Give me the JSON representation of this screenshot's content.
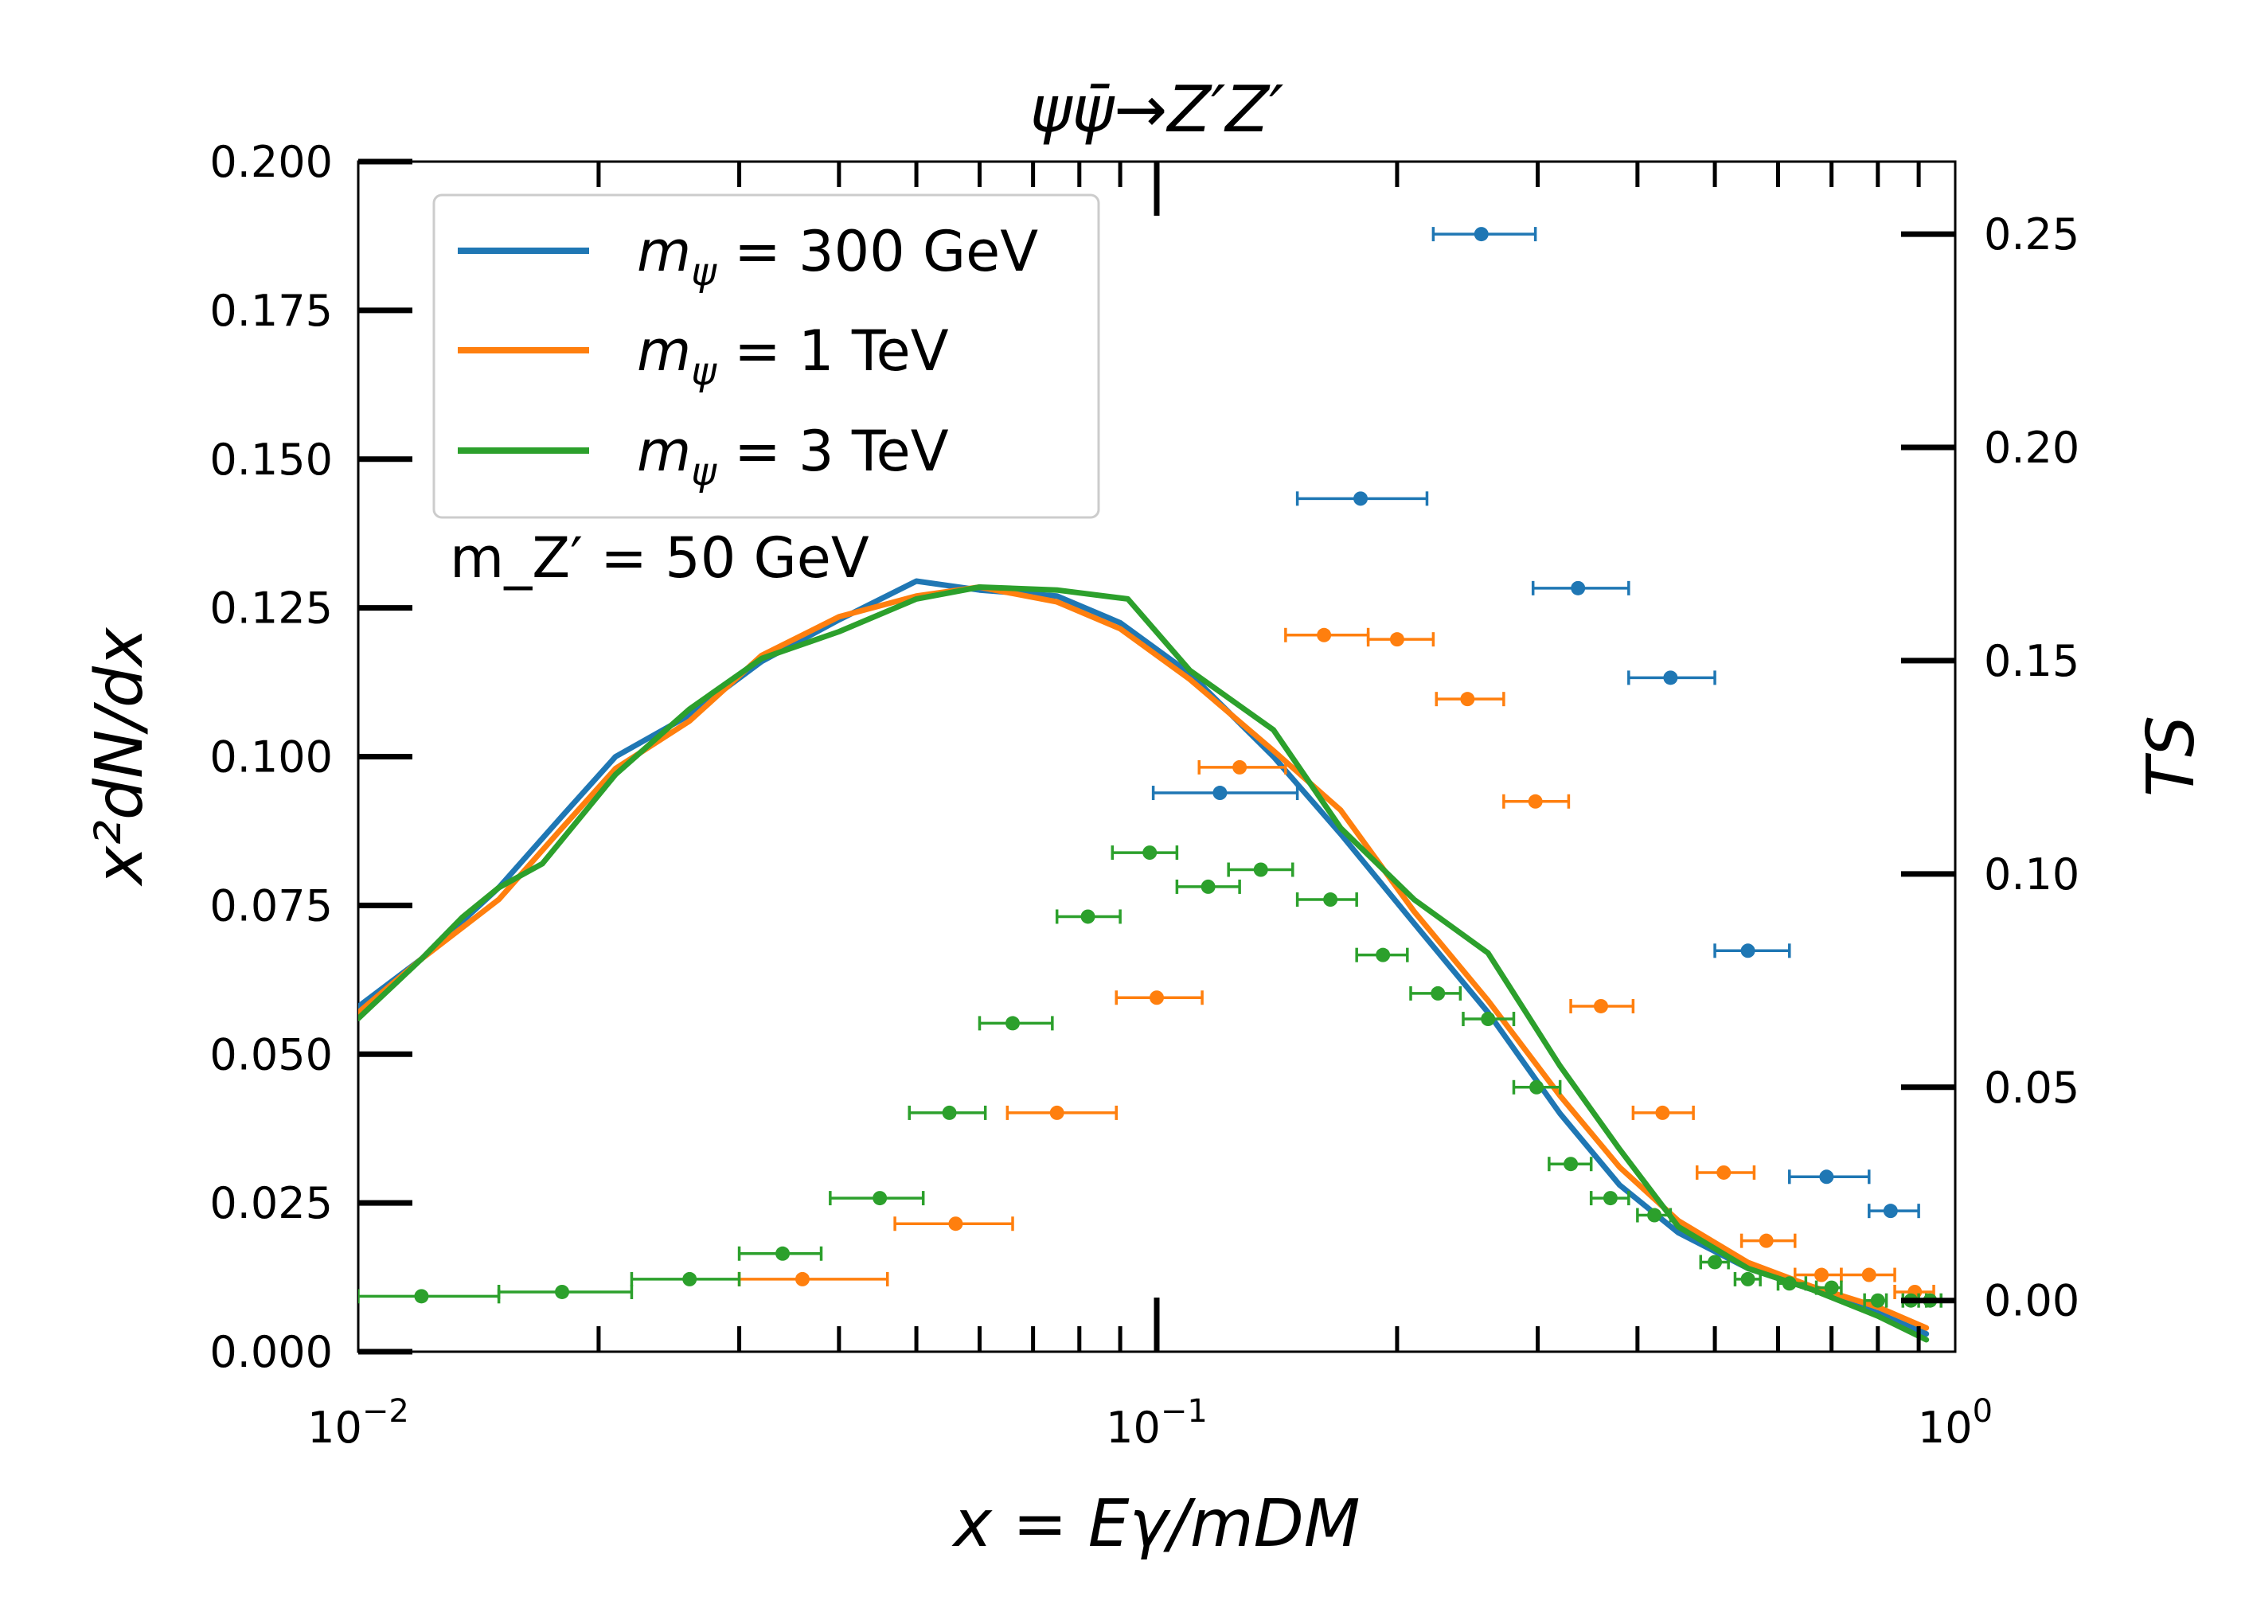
{
  "chart_data": {
    "type": "line",
    "title": "ψψ̄→Z′Z′",
    "xlabel": "x = Eγ/mDM",
    "ylabel": "x²dN/dx",
    "ylabel_right": "TS",
    "xscale": "log",
    "xlim": [
      0.01,
      1
    ],
    "ylim": [
      0,
      0.2
    ],
    "ylim_right": [
      -0.012,
      0.267
    ],
    "x_ticks": [
      {
        "value": 0.01,
        "base": "10",
        "exp": "−2"
      },
      {
        "value": 0.1,
        "base": "10",
        "exp": "−1"
      },
      {
        "value": 1,
        "base": "10",
        "exp": "0"
      }
    ],
    "y_ticks": [
      "0.000",
      "0.025",
      "0.050",
      "0.075",
      "0.100",
      "0.125",
      "0.150",
      "0.175",
      "0.200"
    ],
    "y_ticks_right": [
      "0.00",
      "0.05",
      "0.10",
      "0.15",
      "0.20",
      "0.25"
    ],
    "annotation": "m_Z′ = 50 GeV",
    "legend_position": "top-left",
    "colors": {
      "blue": "#1f77b4",
      "orange": "#ff7f0e",
      "green": "#2ca02c"
    },
    "series": [
      {
        "name": "mψ = 300 GeV",
        "legend": {
          "sym": "m",
          "sub": "ψ",
          "rest": " = 300 GeV"
        },
        "color": "#1f77b4",
        "x": [
          0.01,
          0.012,
          0.015,
          0.018,
          0.021,
          0.026,
          0.032,
          0.04,
          0.05,
          0.06,
          0.075,
          0.09,
          0.11,
          0.14,
          0.17,
          0.21,
          0.26,
          0.32,
          0.38,
          0.45,
          0.55,
          0.66,
          0.8,
          0.92
        ],
        "y": [
          0.058,
          0.066,
          0.078,
          0.09,
          0.1,
          0.107,
          0.116,
          0.123,
          0.1295,
          0.128,
          0.127,
          0.1225,
          0.114,
          0.1,
          0.087,
          0.072,
          0.057,
          0.04,
          0.028,
          0.02,
          0.014,
          0.0105,
          0.0065,
          0.003
        ]
      },
      {
        "name": "mψ = 1 TeV",
        "legend": {
          "sym": "m",
          "sub": "ψ",
          "rest": " = 1 TeV"
        },
        "color": "#ff7f0e",
        "x": [
          0.01,
          0.012,
          0.015,
          0.018,
          0.021,
          0.026,
          0.032,
          0.04,
          0.05,
          0.06,
          0.075,
          0.09,
          0.11,
          0.14,
          0.17,
          0.21,
          0.26,
          0.32,
          0.38,
          0.45,
          0.55,
          0.66,
          0.8,
          0.92
        ],
        "y": [
          0.057,
          0.066,
          0.076,
          0.088,
          0.098,
          0.106,
          0.117,
          0.1235,
          0.127,
          0.1285,
          0.126,
          0.1215,
          0.113,
          0.101,
          0.091,
          0.074,
          0.059,
          0.043,
          0.031,
          0.022,
          0.015,
          0.011,
          0.0075,
          0.004
        ]
      },
      {
        "name": "mψ = 3 TeV",
        "legend": {
          "sym": "m",
          "sub": "ψ",
          "rest": " = 3 TeV"
        },
        "color": "#2ca02c",
        "x": [
          0.01,
          0.012,
          0.0135,
          0.015,
          0.017,
          0.021,
          0.026,
          0.032,
          0.04,
          0.05,
          0.06,
          0.075,
          0.092,
          0.11,
          0.14,
          0.17,
          0.21,
          0.26,
          0.32,
          0.38,
          0.45,
          0.55,
          0.66,
          0.8,
          0.92
        ],
        "y": [
          0.056,
          0.066,
          0.073,
          0.078,
          0.082,
          0.097,
          0.108,
          0.1165,
          0.121,
          0.1265,
          0.1285,
          0.128,
          0.1265,
          0.1145,
          0.1045,
          0.088,
          0.076,
          0.067,
          0.048,
          0.034,
          0.021,
          0.014,
          0.0105,
          0.006,
          0.002
        ]
      }
    ],
    "ts_points": [
      {
        "series": "mψ = 300 GeV",
        "color": "#1f77b4",
        "points": [
          {
            "x": 0.255,
            "xlo": 0.222,
            "xhi": 0.298,
            "ts": 0.25
          },
          {
            "x": 0.18,
            "xlo": 0.15,
            "xhi": 0.218,
            "ts": 0.188
          },
          {
            "x": 0.337,
            "xlo": 0.296,
            "xhi": 0.39,
            "ts": 0.167
          },
          {
            "x": 0.44,
            "xlo": 0.39,
            "xhi": 0.5,
            "ts": 0.146
          },
          {
            "x": 0.12,
            "xlo": 0.099,
            "xhi": 0.15,
            "ts": 0.119
          },
          {
            "x": 0.55,
            "xlo": 0.5,
            "xhi": 0.62,
            "ts": 0.082
          },
          {
            "x": 0.69,
            "xlo": 0.62,
            "xhi": 0.78,
            "ts": 0.029
          },
          {
            "x": 0.83,
            "xlo": 0.78,
            "xhi": 0.9,
            "ts": 0.021
          }
        ]
      },
      {
        "series": "mψ = 1 TeV",
        "color": "#ff7f0e",
        "points": [
          {
            "x": 0.162,
            "xlo": 0.145,
            "xhi": 0.184,
            "ts": 0.156
          },
          {
            "x": 0.2,
            "xlo": 0.184,
            "xhi": 0.222,
            "ts": 0.155
          },
          {
            "x": 0.245,
            "xlo": 0.224,
            "xhi": 0.272,
            "ts": 0.141
          },
          {
            "x": 0.127,
            "xlo": 0.113,
            "xhi": 0.145,
            "ts": 0.125
          },
          {
            "x": 0.298,
            "xlo": 0.272,
            "xhi": 0.328,
            "ts": 0.117
          },
          {
            "x": 0.1,
            "xlo": 0.089,
            "xhi": 0.114,
            "ts": 0.071
          },
          {
            "x": 0.36,
            "xlo": 0.33,
            "xhi": 0.395,
            "ts": 0.069
          },
          {
            "x": 0.075,
            "xlo": 0.065,
            "xhi": 0.089,
            "ts": 0.044
          },
          {
            "x": 0.43,
            "xlo": 0.395,
            "xhi": 0.47,
            "ts": 0.044
          },
          {
            "x": 0.513,
            "xlo": 0.475,
            "xhi": 0.56,
            "ts": 0.03
          },
          {
            "x": 0.58,
            "xlo": 0.54,
            "xhi": 0.63,
            "ts": 0.014
          },
          {
            "x": 0.056,
            "xlo": 0.047,
            "xhi": 0.066,
            "ts": 0.018
          },
          {
            "x": 0.036,
            "xlo": 0.03,
            "xhi": 0.046,
            "ts": 0.005
          },
          {
            "x": 0.68,
            "xlo": 0.63,
            "xhi": 0.72,
            "ts": 0.006
          },
          {
            "x": 0.78,
            "xlo": 0.72,
            "xhi": 0.84,
            "ts": 0.006
          },
          {
            "x": 0.89,
            "xlo": 0.84,
            "xhi": 0.94,
            "ts": 0.002
          }
        ]
      },
      {
        "series": "mψ = 3 TeV",
        "color": "#2ca02c",
        "points": [
          {
            "x": 0.098,
            "xlo": 0.088,
            "xhi": 0.106,
            "ts": 0.105
          },
          {
            "x": 0.135,
            "xlo": 0.123,
            "xhi": 0.148,
            "ts": 0.101
          },
          {
            "x": 0.116,
            "xlo": 0.106,
            "xhi": 0.127,
            "ts": 0.097
          },
          {
            "x": 0.165,
            "xlo": 0.15,
            "xhi": 0.178,
            "ts": 0.094
          },
          {
            "x": 0.082,
            "xlo": 0.075,
            "xhi": 0.09,
            "ts": 0.09
          },
          {
            "x": 0.192,
            "xlo": 0.178,
            "xhi": 0.206,
            "ts": 0.081
          },
          {
            "x": 0.225,
            "xlo": 0.208,
            "xhi": 0.24,
            "ts": 0.072
          },
          {
            "x": 0.066,
            "xlo": 0.06,
            "xhi": 0.074,
            "ts": 0.065
          },
          {
            "x": 0.26,
            "xlo": 0.242,
            "xhi": 0.28,
            "ts": 0.066
          },
          {
            "x": 0.299,
            "xlo": 0.28,
            "xhi": 0.32,
            "ts": 0.05
          },
          {
            "x": 0.055,
            "xlo": 0.049,
            "xhi": 0.061,
            "ts": 0.044
          },
          {
            "x": 0.33,
            "xlo": 0.31,
            "xhi": 0.35,
            "ts": 0.032
          },
          {
            "x": 0.37,
            "xlo": 0.35,
            "xhi": 0.39,
            "ts": 0.024
          },
          {
            "x": 0.42,
            "xlo": 0.4,
            "xhi": 0.44,
            "ts": 0.02
          },
          {
            "x": 0.045,
            "xlo": 0.039,
            "xhi": 0.051,
            "ts": 0.024
          },
          {
            "x": 0.5,
            "xlo": 0.48,
            "xhi": 0.52,
            "ts": 0.009
          },
          {
            "x": 0.55,
            "xlo": 0.53,
            "xhi": 0.57,
            "ts": 0.005
          },
          {
            "x": 0.62,
            "xlo": 0.6,
            "xhi": 0.65,
            "ts": 0.004
          },
          {
            "x": 0.7,
            "xlo": 0.67,
            "xhi": 0.72,
            "ts": 0.003
          },
          {
            "x": 0.8,
            "xlo": 0.77,
            "xhi": 0.82,
            "ts": 0.0
          },
          {
            "x": 0.88,
            "xlo": 0.86,
            "xhi": 0.92,
            "ts": 0.0
          },
          {
            "x": 0.93,
            "xlo": 0.9,
            "xhi": 0.96,
            "ts": 0.0
          },
          {
            "x": 0.034,
            "xlo": 0.03,
            "xhi": 0.038,
            "ts": 0.011
          },
          {
            "x": 0.026,
            "xlo": 0.022,
            "xhi": 0.03,
            "ts": 0.005
          },
          {
            "x": 0.018,
            "xlo": 0.015,
            "xhi": 0.022,
            "ts": 0.002
          },
          {
            "x": 0.012,
            "xlo": 0.01,
            "xhi": 0.015,
            "ts": 0.001
          }
        ]
      }
    ]
  }
}
